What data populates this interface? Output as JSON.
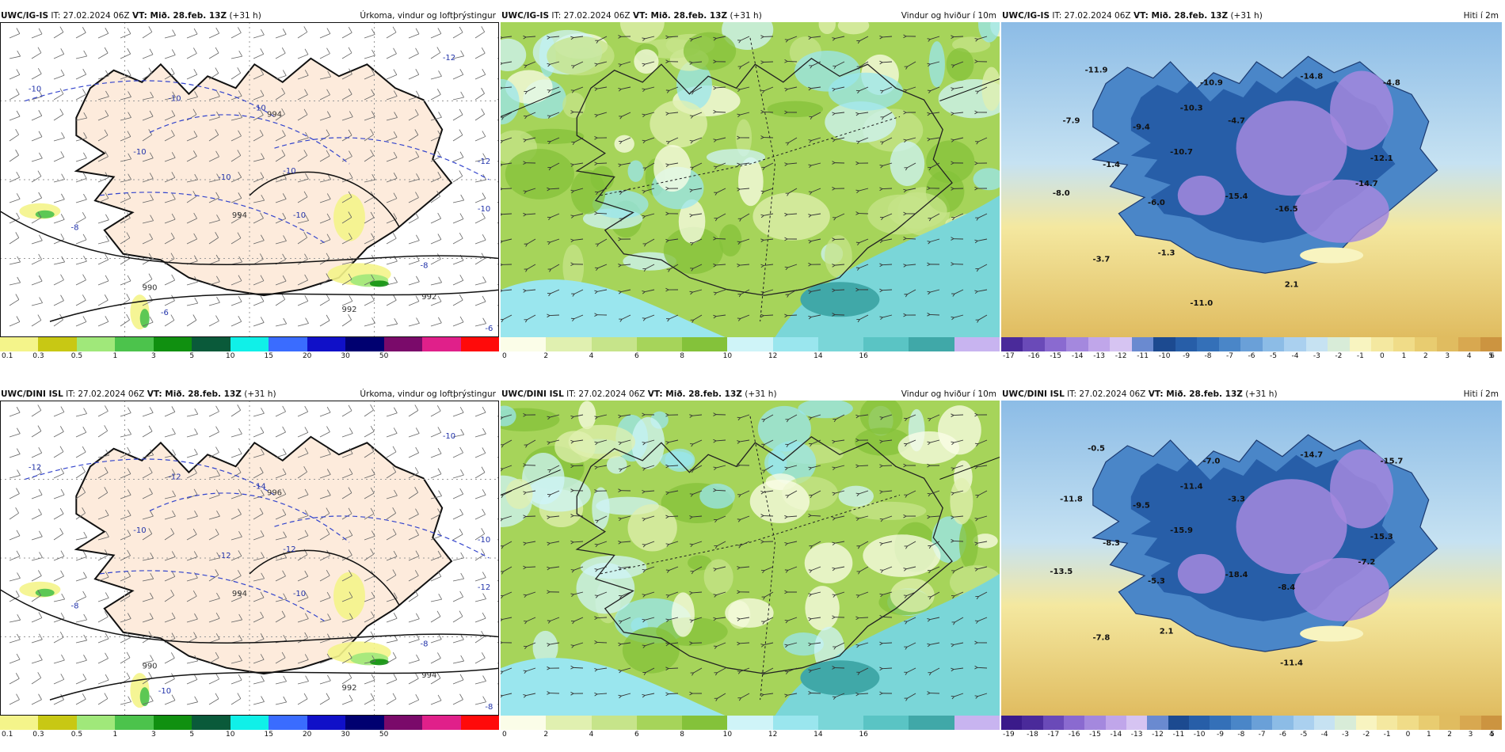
{
  "panels": [
    {
      "id": "igis-precip",
      "model": "UWC/IG-IS",
      "it_label": "IT: 27.02.2024 06Z",
      "vt_label": "VT: Mið. 28.feb. 13Z",
      "lead": "(+31 h)",
      "title": "Úrkoma, vindur og loftþrýstingur",
      "kind": "precip",
      "colorbar": {
        "colors": [
          "#f4f48a",
          "#c8c814",
          "#a0e87a",
          "#4cc34c",
          "#109010",
          "#0a5a3a",
          "#10f0e8",
          "#3a6cff",
          "#1010c8",
          "#000070",
          "#7a0a6a",
          "#e0208a",
          "#ff0a0a"
        ],
        "ticks": [
          "0.1",
          "0.3",
          "0.5",
          "1",
          "3",
          "5",
          "10",
          "15",
          "20",
          "30",
          "50"
        ]
      },
      "contour_labels": [
        "-10",
        "-10",
        "-10",
        "-10",
        "-10",
        "-10",
        "-10",
        "-12",
        "-12",
        "-8",
        "-8",
        "-6",
        "-6",
        "-10"
      ],
      "pressure_labels": [
        "994",
        "994",
        "992",
        "992",
        "990"
      ]
    },
    {
      "id": "igis-wind",
      "model": "UWC/IG-IS",
      "it_label": "IT: 27.02.2024 06Z",
      "vt_label": "VT: Mið. 28.feb. 13Z",
      "lead": "(+31 h)",
      "title": "Vindur og hviður í 10m",
      "kind": "wind",
      "colorbar": {
        "colors": [
          "#fbfde8",
          "#e0f0b0",
          "#c6e48a",
          "#a6d45a",
          "#84c23a",
          "#cff4f8",
          "#9ae6ee",
          "#7ad6d8",
          "#5ac4c4",
          "#40a8a8",
          "#c8b4f0"
        ],
        "ticks": [
          "0",
          "2",
          "4",
          "6",
          "8",
          "10",
          "12",
          "14",
          "16"
        ]
      }
    },
    {
      "id": "igis-temp",
      "model": "UWC/IG-IS",
      "it_label": "IT: 27.02.2024 06Z",
      "vt_label": "VT: Mið. 28.feb. 13Z",
      "lead": "(+31 h)",
      "title": "Hiti í 2m",
      "kind": "temp",
      "colorbar": {
        "colors": [
          "#4a2a9a",
          "#6a4ab8",
          "#8a6ad0",
          "#a488de",
          "#c0a6ea",
          "#d6c4f2",
          "#6a8ad0",
          "#1c4a90",
          "#275ea8",
          "#3470b8",
          "#4a86c8",
          "#6aa0d8",
          "#8cbce6",
          "#aad0ef",
          "#c6e2f2",
          "#d8ecd8",
          "#f8f4c0",
          "#f4e8a0",
          "#f0dc88",
          "#e8cc70",
          "#e0bc60",
          "#d8a850",
          "#cc9440"
        ],
        "ticks": [
          "-17",
          "-16",
          "-15",
          "-14",
          "-13",
          "-12",
          "-11",
          "-10",
          "-9",
          "-8",
          "-7",
          "-6",
          "-5",
          "-4",
          "-3",
          "-2",
          "-1",
          "0",
          "1",
          "2",
          "3",
          "4",
          "5",
          "6"
        ]
      },
      "value_labels": [
        "-11.9",
        "-10.9",
        "-10.3",
        "-14.8",
        "-4.8",
        "-7.9",
        "-9.4",
        "-4.7",
        "-10.7",
        "-12.1",
        "-1.4",
        "-8.0",
        "-6.0",
        "-15.4",
        "-14.7",
        "-16.5",
        "-3.7",
        "-1.3",
        "2.1",
        "-11.0"
      ]
    },
    {
      "id": "dini-precip",
      "model": "UWC/DINI ISL",
      "it_label": "IT: 27.02.2024 06Z",
      "vt_label": "VT: Mið. 28.feb. 13Z",
      "lead": "(+31 h)",
      "title": "Úrkoma, vindur og loftþrýstingur",
      "kind": "precip",
      "colorbar": {
        "colors": [
          "#f4f48a",
          "#c8c814",
          "#a0e87a",
          "#4cc34c",
          "#109010",
          "#0a5a3a",
          "#10f0e8",
          "#3a6cff",
          "#1010c8",
          "#000070",
          "#7a0a6a",
          "#e0208a",
          "#ff0a0a"
        ],
        "ticks": [
          "0.1",
          "0.3",
          "0.5",
          "1",
          "3",
          "5",
          "10",
          "15",
          "20",
          "30",
          "50"
        ]
      },
      "contour_labels": [
        "-12",
        "-12",
        "-14",
        "-12",
        "-12",
        "-10",
        "-10",
        "-10",
        "-10",
        "-8",
        "-8",
        "-10",
        "-8",
        "-12"
      ],
      "pressure_labels": [
        "996",
        "994",
        "994",
        "992",
        "990"
      ]
    },
    {
      "id": "dini-wind",
      "model": "UWC/DINI ISL",
      "it_label": "IT: 27.02.2024 06Z",
      "vt_label": "VT: Mið. 28.feb. 13Z",
      "lead": "(+31 h)",
      "title": "Vindur og hviður í 10m",
      "kind": "wind",
      "colorbar": {
        "colors": [
          "#fbfde8",
          "#e0f0b0",
          "#c6e48a",
          "#a6d45a",
          "#84c23a",
          "#cff4f8",
          "#9ae6ee",
          "#7ad6d8",
          "#5ac4c4",
          "#40a8a8",
          "#c8b4f0"
        ],
        "ticks": [
          "0",
          "2",
          "4",
          "6",
          "8",
          "10",
          "12",
          "14",
          "16"
        ]
      }
    },
    {
      "id": "dini-temp",
      "model": "UWC/DINI ISL",
      "it_label": "IT: 27.02.2024 06Z",
      "vt_label": "VT: Mið. 28.feb. 13Z",
      "lead": "(+31 h)",
      "title": "Hiti í 2m",
      "kind": "temp",
      "colorbar": {
        "colors": [
          "#3a1a8a",
          "#4a2a9a",
          "#6a4ab8",
          "#8a6ad0",
          "#a488de",
          "#c0a6ea",
          "#d6c4f2",
          "#6a8ad0",
          "#1c4a90",
          "#275ea8",
          "#3470b8",
          "#4a86c8",
          "#6aa0d8",
          "#8cbce6",
          "#aad0ef",
          "#c6e2f2",
          "#d8ecd8",
          "#f8f4c0",
          "#f4e8a0",
          "#f0dc88",
          "#e8cc70",
          "#e0bc60",
          "#d8a850",
          "#cc9440"
        ],
        "ticks": [
          "-19",
          "-18",
          "-17",
          "-16",
          "-15",
          "-14",
          "-13",
          "-12",
          "-11",
          "-10",
          "-9",
          "-8",
          "-7",
          "-6",
          "-5",
          "-4",
          "-3",
          "-2",
          "-1",
          "0",
          "1",
          "2",
          "3",
          "4",
          "5"
        ]
      },
      "value_labels": [
        "-0.5",
        "-7.0",
        "-11.4",
        "-14.7",
        "-15.7",
        "-11.8",
        "-9.5",
        "-3.3",
        "-15.9",
        "-15.3",
        "-8.3",
        "-13.5",
        "-5.3",
        "-18.4",
        "-7.2",
        "-8.4",
        "-7.8",
        "2.1",
        "-11.4"
      ]
    }
  ]
}
